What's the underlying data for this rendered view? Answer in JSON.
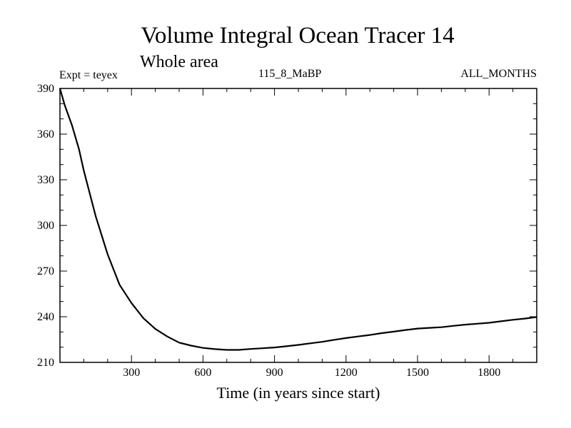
{
  "chart_data": {
    "type": "line",
    "title": "Volume Integral Ocean Tracer 14",
    "subtitle": "Whole area",
    "experiment_label": "Expt = teyex",
    "run_label": "115_8_MaBP",
    "period_label": "ALL_MONTHS",
    "xlabel": "Time (in years since start)",
    "ylabel": "",
    "xlim": [
      0,
      2000
    ],
    "ylim": [
      210,
      390
    ],
    "x_ticks": [
      300,
      600,
      900,
      1200,
      1500,
      1800
    ],
    "y_ticks": [
      210,
      240,
      270,
      300,
      330,
      360,
      390
    ],
    "grid": false,
    "series": [
      {
        "name": "Ocean Tracer 14",
        "x": [
          0,
          20,
          50,
          80,
          100,
          150,
          200,
          250,
          300,
          350,
          400,
          450,
          500,
          550,
          600,
          650,
          700,
          750,
          800,
          850,
          900,
          950,
          1000,
          1050,
          1100,
          1150,
          1200,
          1250,
          1300,
          1350,
          1400,
          1450,
          1500,
          1550,
          1600,
          1650,
          1700,
          1750,
          1800,
          1850,
          1900,
          1950,
          2000
        ],
        "values": [
          390,
          379,
          366,
          350,
          336,
          306,
          281,
          261,
          249,
          239,
          232,
          227,
          223,
          221,
          219.5,
          218.7,
          218.2,
          218.2,
          218.8,
          219.3,
          219.8,
          220.6,
          221.5,
          222.5,
          223.5,
          224.8,
          226,
          227,
          228,
          229.2,
          230.2,
          231.3,
          232.2,
          232.7,
          233.1,
          234,
          234.8,
          235.4,
          236,
          237,
          238,
          238.8,
          239.8
        ]
      }
    ]
  }
}
